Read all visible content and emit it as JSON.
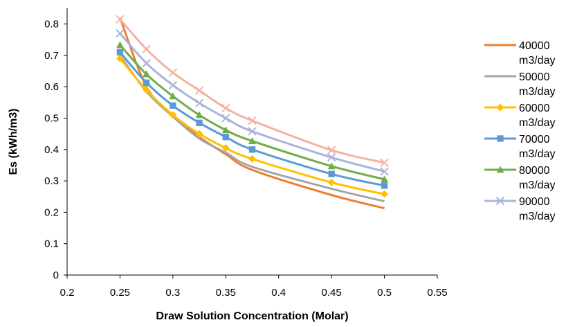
{
  "chart_data": {
    "type": "line",
    "title": "",
    "xlabel": "Draw Solution Concentration (Molar)",
    "ylabel": "Es (kWh/m3)",
    "xlim": [
      0.2,
      0.55
    ],
    "ylim": [
      0,
      0.85
    ],
    "x_ticks": [
      "0.2",
      "0.25",
      "0.3",
      "0.35",
      "0.4",
      "0.45",
      "0.5",
      "0.55"
    ],
    "y_ticks": [
      "0",
      "0.1",
      "0.2",
      "0.3",
      "0.4",
      "0.5",
      "0.6",
      "0.7",
      "0.8"
    ],
    "grid": false,
    "legend_position": "right",
    "x": [
      0.25,
      0.275,
      0.3,
      0.325,
      0.35,
      0.375,
      0.45,
      0.5
    ],
    "series": [
      {
        "name": "40000",
        "name_unit": "m3/day",
        "color": "#ED7D31",
        "marker": "none",
        "values": [
          0.82,
          0.6,
          0.51,
          0.44,
          0.385,
          0.335,
          0.255,
          0.213
        ]
      },
      {
        "name": "50000",
        "name_unit": "m3/day",
        "color": "#A5A5A5",
        "marker": "none",
        "values": [
          0.7,
          0.585,
          0.505,
          0.435,
          0.39,
          0.345,
          0.275,
          0.235
        ]
      },
      {
        "name": "60000",
        "name_unit": "m3/day",
        "color": "#FFC000",
        "marker": "diamond",
        "values": [
          0.69,
          0.59,
          0.51,
          0.45,
          0.405,
          0.37,
          0.295,
          0.258
        ]
      },
      {
        "name": "70000",
        "name_unit": "m3/day",
        "color": "#5B9BD5",
        "marker": "square",
        "values": [
          0.71,
          0.613,
          0.54,
          0.485,
          0.44,
          0.4,
          0.322,
          0.285
        ]
      },
      {
        "name": "80000",
        "name_unit": "m3/day",
        "color": "#70AD47",
        "marker": "triangle",
        "values": [
          0.733,
          0.64,
          0.57,
          0.51,
          0.462,
          0.427,
          0.347,
          0.305
        ]
      },
      {
        "name": "90000",
        "name_unit": "m3/day",
        "color": "#A9B4DA",
        "marker": "x",
        "values": [
          0.77,
          0.675,
          0.605,
          0.548,
          0.5,
          0.458,
          0.375,
          0.33
        ]
      },
      {
        "name": "",
        "name_unit": "",
        "color": "#F4B2A2",
        "marker": "x",
        "values": [
          0.815,
          0.72,
          0.645,
          0.588,
          0.532,
          0.492,
          0.398,
          0.358
        ]
      }
    ]
  }
}
